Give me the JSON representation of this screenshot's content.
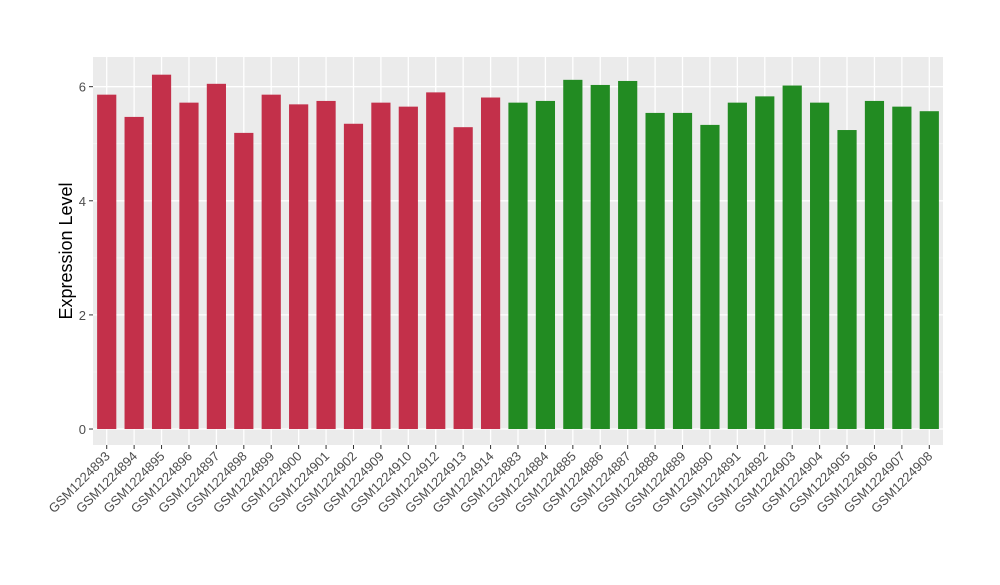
{
  "chart_data": {
    "type": "bar",
    "title": "",
    "xlabel": "",
    "ylabel": "Expression Level",
    "ylim": [
      -0.28,
      6.52
    ],
    "yticks": [
      0,
      2,
      4,
      6
    ],
    "grid": true,
    "background": "#EBEBEB",
    "categories": [
      "GSM1224893",
      "GSM1224894",
      "GSM1224895",
      "GSM1224896",
      "GSM1224897",
      "GSM1224898",
      "GSM1224899",
      "GSM1224900",
      "GSM1224901",
      "GSM1224902",
      "GSM1224909",
      "GSM1224910",
      "GSM1224912",
      "GSM1224913",
      "GSM1224914",
      "GSM1224883",
      "GSM1224884",
      "GSM1224885",
      "GSM1224886",
      "GSM1224887",
      "GSM1224888",
      "GSM1224889",
      "GSM1224890",
      "GSM1224891",
      "GSM1224892",
      "GSM1224903",
      "GSM1224904",
      "GSM1224905",
      "GSM1224906",
      "GSM1224907",
      "GSM1224908"
    ],
    "values": [
      5.86,
      5.47,
      6.21,
      5.72,
      6.05,
      5.19,
      5.86,
      5.69,
      5.75,
      5.35,
      5.72,
      5.65,
      5.9,
      5.29,
      5.81,
      5.72,
      5.75,
      6.12,
      6.03,
      6.1,
      5.54,
      5.54,
      5.33,
      5.72,
      5.83,
      6.02,
      5.72,
      5.24,
      5.75,
      5.65,
      5.57
    ],
    "groups": [
      0,
      0,
      0,
      0,
      0,
      0,
      0,
      0,
      0,
      0,
      0,
      0,
      0,
      0,
      0,
      1,
      1,
      1,
      1,
      1,
      1,
      1,
      1,
      1,
      1,
      1,
      1,
      1,
      1,
      1,
      1
    ],
    "group_colors": [
      "#C3304A",
      "#228B22"
    ]
  }
}
